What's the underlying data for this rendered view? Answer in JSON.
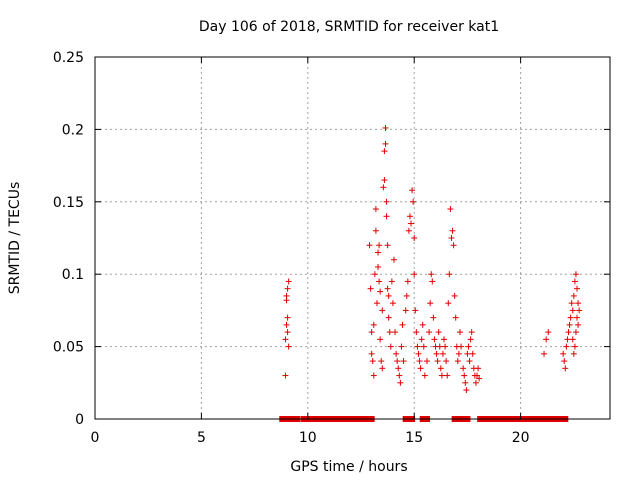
{
  "chart_data": {
    "type": "scatter",
    "title": "Day 106 of 2018, SRMTID for receiver kat1",
    "xlabel": "GPS time / hours",
    "ylabel": "SRMTID / TECUs",
    "xlim": [
      0,
      24.2
    ],
    "ylim": [
      0,
      0.25
    ],
    "xticks": [
      0,
      5,
      10,
      15,
      20
    ],
    "xtick_labels": [
      "0",
      "5",
      "10",
      "15",
      "20"
    ],
    "yticks": [
      0,
      0.05,
      0.1,
      0.15,
      0.2,
      0.25
    ],
    "ytick_labels": [
      "0",
      "0.05",
      "0.1",
      "0.15",
      "0.2",
      "0.25"
    ],
    "grid": true,
    "marker_color": "#e00000",
    "marker": "plus",
    "series": [
      {
        "name": "SRMTID",
        "points": [
          [
            8.95,
            0.03
          ],
          [
            8.95,
            0.055
          ],
          [
            9.0,
            0.065
          ],
          [
            9.0,
            0.085
          ],
          [
            9.05,
            0.09
          ],
          [
            9.1,
            0.095
          ],
          [
            9.05,
            0.06
          ],
          [
            9.1,
            0.05
          ],
          [
            9.05,
            0.07
          ],
          [
            9.0,
            0.082
          ],
          [
            12.9,
            0.12
          ],
          [
            12.95,
            0.09
          ],
          [
            13.0,
            0.06
          ],
          [
            13.0,
            0.045
          ],
          [
            13.05,
            0.04
          ],
          [
            13.1,
            0.03
          ],
          [
            13.1,
            0.065
          ],
          [
            13.15,
            0.1
          ],
          [
            13.2,
            0.13
          ],
          [
            13.2,
            0.145
          ],
          [
            13.25,
            0.08
          ],
          [
            13.3,
            0.115
          ],
          [
            13.3,
            0.105
          ],
          [
            13.35,
            0.12
          ],
          [
            13.35,
            0.095
          ],
          [
            13.4,
            0.088
          ],
          [
            13.4,
            0.055
          ],
          [
            13.45,
            0.04
          ],
          [
            13.5,
            0.035
          ],
          [
            13.5,
            0.075
          ],
          [
            13.55,
            0.16
          ],
          [
            13.6,
            0.165
          ],
          [
            13.6,
            0.185
          ],
          [
            13.65,
            0.19
          ],
          [
            13.65,
            0.201
          ],
          [
            13.7,
            0.15
          ],
          [
            13.7,
            0.14
          ],
          [
            13.75,
            0.12
          ],
          [
            13.75,
            0.09
          ],
          [
            13.8,
            0.085
          ],
          [
            13.8,
            0.07
          ],
          [
            13.85,
            0.06
          ],
          [
            13.9,
            0.05
          ],
          [
            13.95,
            0.095
          ],
          [
            14.0,
            0.08
          ],
          [
            14.05,
            0.11
          ],
          [
            14.1,
            0.06
          ],
          [
            14.15,
            0.045
          ],
          [
            14.2,
            0.04
          ],
          [
            14.25,
            0.035
          ],
          [
            14.3,
            0.03
          ],
          [
            14.35,
            0.025
          ],
          [
            14.4,
            0.05
          ],
          [
            14.45,
            0.065
          ],
          [
            14.5,
            0.04
          ],
          [
            14.6,
            0.075
          ],
          [
            14.65,
            0.085
          ],
          [
            14.7,
            0.095
          ],
          [
            14.75,
            0.13
          ],
          [
            14.8,
            0.14
          ],
          [
            14.85,
            0.135
          ],
          [
            14.9,
            0.158
          ],
          [
            14.95,
            0.15
          ],
          [
            15.0,
            0.125
          ],
          [
            15.0,
            0.1
          ],
          [
            15.05,
            0.075
          ],
          [
            15.1,
            0.06
          ],
          [
            15.15,
            0.05
          ],
          [
            15.2,
            0.045
          ],
          [
            15.25,
            0.04
          ],
          [
            15.3,
            0.035
          ],
          [
            15.35,
            0.055
          ],
          [
            15.4,
            0.065
          ],
          [
            15.45,
            0.05
          ],
          [
            15.5,
            0.03
          ],
          [
            15.6,
            0.04
          ],
          [
            15.7,
            0.06
          ],
          [
            15.75,
            0.08
          ],
          [
            15.8,
            0.1
          ],
          [
            15.85,
            0.095
          ],
          [
            15.9,
            0.07
          ],
          [
            15.95,
            0.055
          ],
          [
            16.0,
            0.05
          ],
          [
            16.05,
            0.045
          ],
          [
            16.1,
            0.04
          ],
          [
            16.15,
            0.06
          ],
          [
            16.2,
            0.05
          ],
          [
            16.25,
            0.035
          ],
          [
            16.3,
            0.03
          ],
          [
            16.35,
            0.045
          ],
          [
            16.4,
            0.055
          ],
          [
            16.45,
            0.05
          ],
          [
            16.5,
            0.04
          ],
          [
            16.55,
            0.03
          ],
          [
            16.6,
            0.08
          ],
          [
            16.65,
            0.1
          ],
          [
            16.7,
            0.145
          ],
          [
            16.75,
            0.125
          ],
          [
            16.8,
            0.13
          ],
          [
            16.85,
            0.12
          ],
          [
            16.9,
            0.085
          ],
          [
            16.95,
            0.07
          ],
          [
            17.0,
            0.05
          ],
          [
            17.05,
            0.04
          ],
          [
            17.1,
            0.045
          ],
          [
            17.15,
            0.06
          ],
          [
            17.2,
            0.05
          ],
          [
            17.3,
            0.035
          ],
          [
            17.35,
            0.03
          ],
          [
            17.4,
            0.025
          ],
          [
            17.45,
            0.02
          ],
          [
            17.5,
            0.045
          ],
          [
            17.55,
            0.05
          ],
          [
            17.6,
            0.04
          ],
          [
            17.65,
            0.055
          ],
          [
            17.7,
            0.06
          ],
          [
            17.75,
            0.045
          ],
          [
            17.8,
            0.035
          ],
          [
            17.85,
            0.03
          ],
          [
            17.9,
            0.025
          ],
          [
            17.95,
            0.03
          ],
          [
            18.0,
            0.035
          ],
          [
            18.05,
            0.028
          ],
          [
            21.1,
            0.045
          ],
          [
            21.2,
            0.055
          ],
          [
            21.3,
            0.06
          ],
          [
            22.0,
            0.045
          ],
          [
            22.05,
            0.04
          ],
          [
            22.1,
            0.035
          ],
          [
            22.15,
            0.05
          ],
          [
            22.2,
            0.055
          ],
          [
            22.25,
            0.06
          ],
          [
            22.3,
            0.065
          ],
          [
            22.35,
            0.07
          ],
          [
            22.4,
            0.08
          ],
          [
            22.45,
            0.075
          ],
          [
            22.5,
            0.085
          ],
          [
            22.55,
            0.095
          ],
          [
            22.6,
            0.1
          ],
          [
            22.65,
            0.09
          ],
          [
            22.7,
            0.08
          ],
          [
            22.65,
            0.07
          ],
          [
            22.6,
            0.06
          ],
          [
            22.55,
            0.05
          ],
          [
            22.5,
            0.045
          ],
          [
            22.45,
            0.055
          ],
          [
            22.7,
            0.065
          ],
          [
            22.75,
            0.075
          ]
        ]
      }
    ],
    "baseline_segments": [
      [
        8.8,
        9.0
      ],
      [
        9.2,
        9.5
      ],
      [
        9.8,
        13.0
      ],
      [
        14.6,
        14.9
      ],
      [
        15.4,
        15.6
      ],
      [
        16.9,
        17.1
      ],
      [
        17.3,
        17.5
      ],
      [
        18.1,
        22.1
      ]
    ]
  }
}
